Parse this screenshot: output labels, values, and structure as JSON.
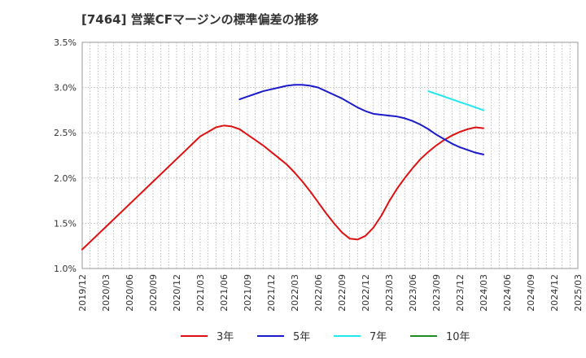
{
  "chart_data": {
    "type": "line",
    "title": "[7464]  営業CFマージンの標準偏差の推移",
    "xlabel": "",
    "ylabel": "",
    "ylim": [
      1.0,
      3.5
    ],
    "yticks": [
      "1.0%",
      "1.5%",
      "2.0%",
      "2.5%",
      "3.0%",
      "3.5%"
    ],
    "yvalues": [
      1.0,
      1.5,
      2.0,
      2.5,
      3.0,
      3.5
    ],
    "xticks": [
      "2019/12",
      "2020/03",
      "2020/06",
      "2020/09",
      "2020/12",
      "2021/03",
      "2021/06",
      "2021/09",
      "2021/12",
      "2022/03",
      "2022/06",
      "2022/09",
      "2022/12",
      "2023/03",
      "2023/06",
      "2023/09",
      "2023/12",
      "2024/03",
      "2024/06",
      "2024/09",
      "2024/12",
      "2025/03"
    ],
    "grid": true,
    "legend_position": "bottom",
    "series": [
      {
        "name": "3年",
        "color": "#dd1111",
        "points": [
          [
            "2019/12",
            1.21
          ],
          [
            "2020/03",
            1.46
          ],
          [
            "2020/06",
            1.71
          ],
          [
            "2020/09",
            1.96
          ],
          [
            "2020/12",
            2.21
          ],
          [
            "2021/03",
            2.46
          ],
          [
            "2021/05",
            2.56
          ],
          [
            "2021/06",
            2.58
          ],
          [
            "2021/07",
            2.57
          ],
          [
            "2021/08",
            2.54
          ],
          [
            "2021/09",
            2.48
          ],
          [
            "2021/10",
            2.42
          ],
          [
            "2021/11",
            2.36
          ],
          [
            "2021/12",
            2.29
          ],
          [
            "2022/01",
            2.22
          ],
          [
            "2022/02",
            2.15
          ],
          [
            "2022/03",
            2.06
          ],
          [
            "2022/04",
            1.96
          ],
          [
            "2022/05",
            1.85
          ],
          [
            "2022/06",
            1.73
          ],
          [
            "2022/07",
            1.61
          ],
          [
            "2022/08",
            1.5
          ],
          [
            "2022/09",
            1.4
          ],
          [
            "2022/10",
            1.33
          ],
          [
            "2022/11",
            1.32
          ],
          [
            "2022/12",
            1.36
          ],
          [
            "2023/01",
            1.45
          ],
          [
            "2023/02",
            1.58
          ],
          [
            "2023/03",
            1.74
          ],
          [
            "2023/04",
            1.88
          ],
          [
            "2023/05",
            2.0
          ],
          [
            "2023/06",
            2.11
          ],
          [
            "2023/07",
            2.21
          ],
          [
            "2023/08",
            2.29
          ],
          [
            "2023/09",
            2.36
          ],
          [
            "2023/10",
            2.42
          ],
          [
            "2023/11",
            2.47
          ],
          [
            "2023/12",
            2.51
          ],
          [
            "2024/01",
            2.54
          ],
          [
            "2024/02",
            2.56
          ],
          [
            "2024/03",
            2.55
          ]
        ]
      },
      {
        "name": "5年",
        "color": "#1a1acc",
        "points": [
          [
            "2021/08",
            2.87
          ],
          [
            "2021/09",
            2.9
          ],
          [
            "2021/10",
            2.93
          ],
          [
            "2021/11",
            2.96
          ],
          [
            "2021/12",
            2.98
          ],
          [
            "2022/01",
            3.0
          ],
          [
            "2022/02",
            3.02
          ],
          [
            "2022/03",
            3.03
          ],
          [
            "2022/04",
            3.03
          ],
          [
            "2022/05",
            3.02
          ],
          [
            "2022/06",
            3.0
          ],
          [
            "2022/07",
            2.96
          ],
          [
            "2022/08",
            2.92
          ],
          [
            "2022/09",
            2.88
          ],
          [
            "2022/10",
            2.83
          ],
          [
            "2022/11",
            2.78
          ],
          [
            "2022/12",
            2.74
          ],
          [
            "2023/01",
            2.71
          ],
          [
            "2023/02",
            2.7
          ],
          [
            "2023/03",
            2.69
          ],
          [
            "2023/04",
            2.68
          ],
          [
            "2023/05",
            2.66
          ],
          [
            "2023/06",
            2.63
          ],
          [
            "2023/07",
            2.59
          ],
          [
            "2023/08",
            2.54
          ],
          [
            "2023/09",
            2.48
          ],
          [
            "2023/10",
            2.43
          ],
          [
            "2023/11",
            2.38
          ],
          [
            "2023/12",
            2.34
          ],
          [
            "2024/01",
            2.31
          ],
          [
            "2024/02",
            2.28
          ],
          [
            "2024/03",
            2.26
          ]
        ]
      },
      {
        "name": "7年",
        "color": "#22e8ee",
        "points": [
          [
            "2023/08",
            2.96
          ],
          [
            "2023/09",
            2.93
          ],
          [
            "2023/10",
            2.9
          ],
          [
            "2023/11",
            2.87
          ],
          [
            "2023/12",
            2.84
          ],
          [
            "2024/01",
            2.81
          ],
          [
            "2024/02",
            2.78
          ],
          [
            "2024/03",
            2.75
          ]
        ]
      },
      {
        "name": "10年",
        "color": "#228822",
        "points": []
      }
    ]
  }
}
